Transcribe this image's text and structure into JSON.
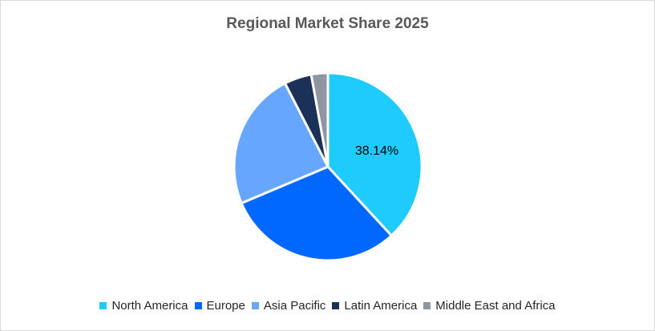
{
  "chart_data": {
    "type": "pie",
    "title": "Regional Market Share 2025",
    "categories": [
      "North America",
      "Europe",
      "Asia Pacific",
      "Latin America",
      "Middle East and Africa"
    ],
    "values": [
      38.14,
      30.5,
      23.8,
      4.7,
      2.86
    ],
    "unit": "%",
    "colors": [
      "#1ECBFC",
      "#0068FF",
      "#66A6FF",
      "#1C3157",
      "#8E96A3"
    ],
    "data_labels": [
      {
        "category": "North America",
        "text": "38.14%"
      }
    ],
    "legend_position": "bottom",
    "start_angle_deg": 0,
    "direction": "clockwise"
  },
  "title": "Regional Market Share 2025",
  "label_na": "38.14%",
  "legend": [
    {
      "label": "North America",
      "color": "#1ECBFC"
    },
    {
      "label": "Europe",
      "color": "#0068FF"
    },
    {
      "label": "Asia Pacific",
      "color": "#66A6FF"
    },
    {
      "label": "Latin America",
      "color": "#1C3157"
    },
    {
      "label": "Middle East and Africa",
      "color": "#8E96A3"
    }
  ]
}
